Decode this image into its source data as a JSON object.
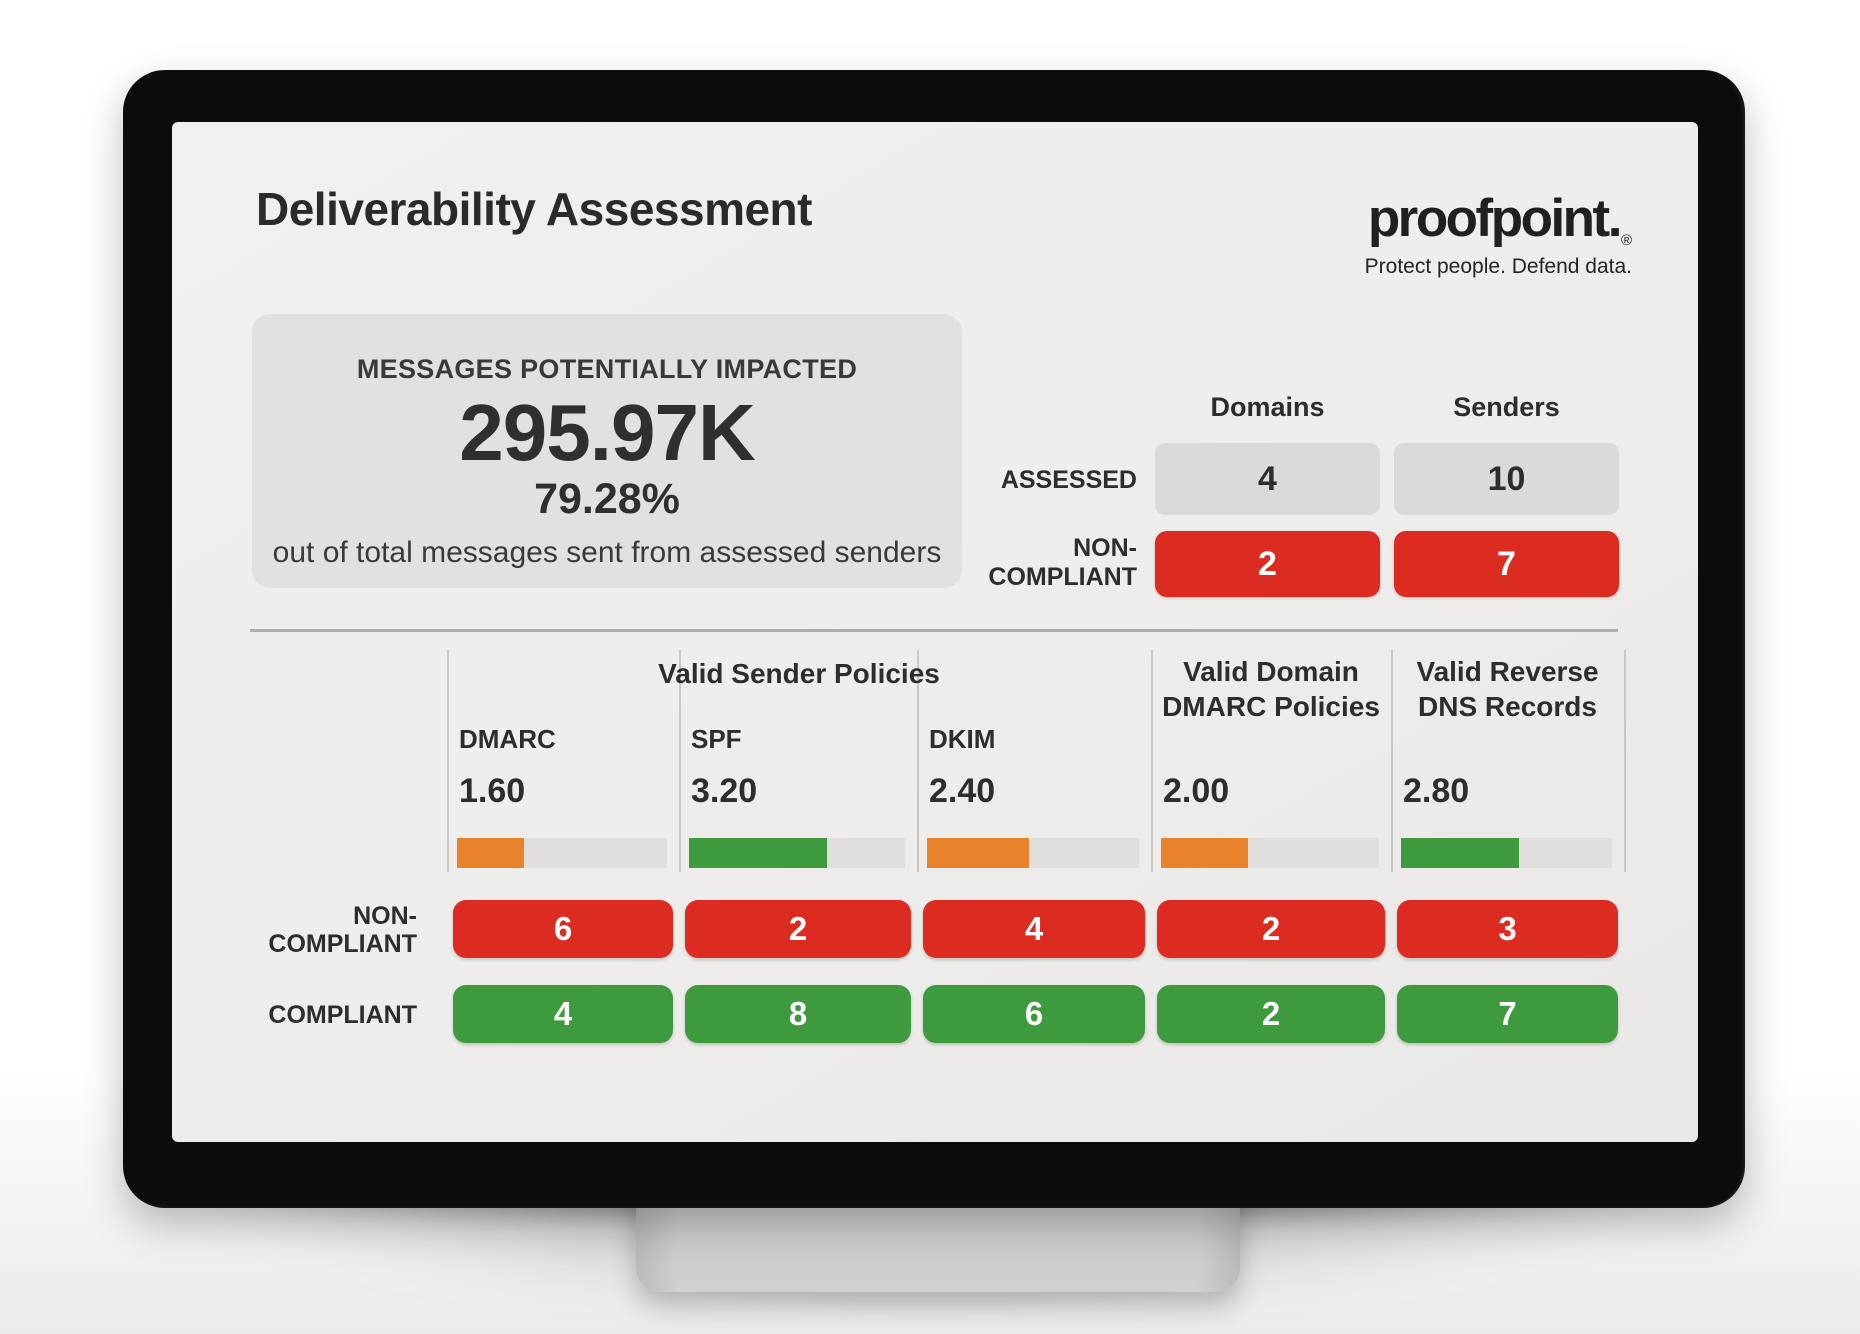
{
  "colors": {
    "red": "#DC2B20",
    "green": "#3E9B3D",
    "orange": "#E8832B",
    "cell_gray": "#DBDAD8",
    "card_gray": "#E2E1DF"
  },
  "header": {
    "title": "Deliverability Assessment",
    "logo": {
      "wordmark": "proofpoint.",
      "registered_mark": "®",
      "tagline": "Protect people. Defend data."
    }
  },
  "impact_card": {
    "label": "MESSAGES POTENTIALLY IMPACTED",
    "value": "295.97K",
    "percent": "79.28%",
    "caption": "out of total messages sent from assessed senders"
  },
  "summary": {
    "columns": [
      "Domains",
      "Senders"
    ],
    "assessed": {
      "label": "ASSESSED",
      "domains": "4",
      "senders": "10"
    },
    "non_compliant": {
      "label_line1": "NON-",
      "label_line2": "COMPLIANT",
      "domains": "2",
      "senders": "7"
    }
  },
  "policies": {
    "group_header": "Valid Sender Policies",
    "columns": [
      {
        "label": "DMARC",
        "score": "1.60",
        "fill_pct": 32,
        "bar_color": "orange",
        "non_compliant": "6",
        "compliant": "4"
      },
      {
        "label": "SPF",
        "score": "3.20",
        "fill_pct": 64,
        "bar_color": "green",
        "non_compliant": "2",
        "compliant": "8"
      },
      {
        "label": "DKIM",
        "score": "2.40",
        "fill_pct": 48,
        "bar_color": "orange",
        "non_compliant": "4",
        "compliant": "6"
      },
      {
        "label": "Valid Domain DMARC Policies",
        "score": "2.00",
        "fill_pct": 40,
        "bar_color": "orange",
        "non_compliant": "2",
        "compliant": "2"
      },
      {
        "label": "Valid Reverse DNS Records",
        "score": "2.80",
        "fill_pct": 56,
        "bar_color": "green",
        "non_compliant": "3",
        "compliant": "7"
      }
    ],
    "rows": {
      "non_compliant_line1": "NON-",
      "non_compliant_line2": "COMPLIANT",
      "compliant": "COMPLIANT"
    }
  }
}
